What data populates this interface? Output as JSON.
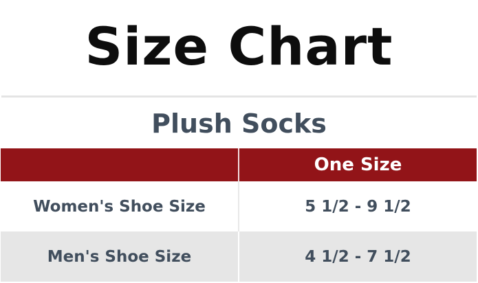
{
  "title": "Size Chart",
  "subtitle": "Plush Socks",
  "table": {
    "header": [
      "",
      "One Size"
    ],
    "rows": [
      {
        "label": "Women's Shoe Size",
        "value": "5 1/2 - 9 1/2"
      },
      {
        "label": "Men's Shoe Size",
        "value": "4 1/2 - 7 1/2"
      }
    ]
  },
  "colors": {
    "header_bg": "#921418",
    "text": "#414e5d",
    "alt_row": "#e6e6e6"
  }
}
